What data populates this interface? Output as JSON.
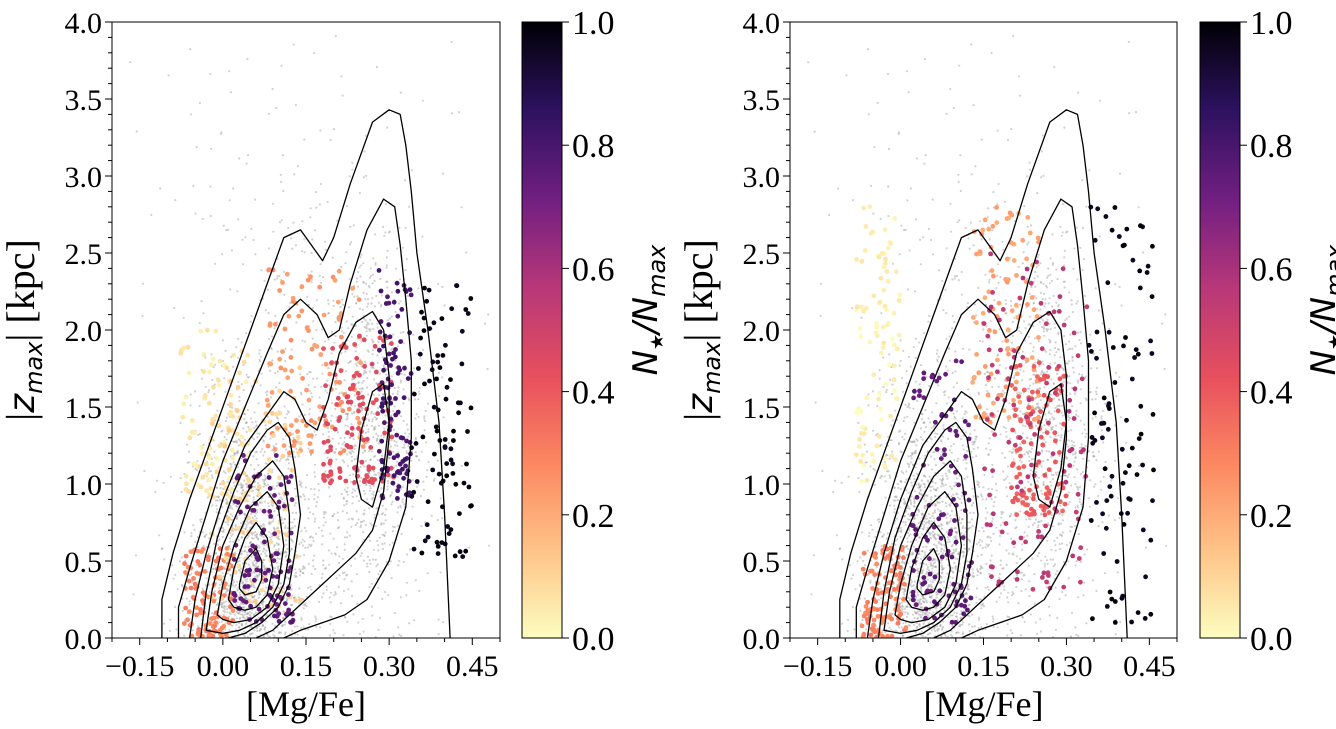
{
  "chart_data": [
    {
      "type": "scatter",
      "panel": "left",
      "xlabel": "[Mg/Fe]",
      "ylabel": "|z_max| [kpc]",
      "xlim": [
        -0.2,
        0.5
      ],
      "ylim": [
        0.0,
        4.0
      ],
      "xticks": [
        -0.15,
        0.0,
        0.15,
        0.3,
        0.45
      ],
      "xtick_labels": [
        "−0.15",
        "0.00",
        "0.15",
        "0.30",
        "0.45"
      ],
      "yticks": [
        0.0,
        0.5,
        1.0,
        1.5,
        2.0,
        2.5,
        3.0,
        3.5,
        4.0
      ],
      "ytick_labels": [
        "0.0",
        "0.5",
        "1.0",
        "1.5",
        "2.0",
        "2.5",
        "3.0",
        "3.5",
        "4.0"
      ],
      "grid": false,
      "background_points": "grey scatter of full sample, densest near [Mg/Fe]≈0.05, |z_max|≈0.4 and a second concentration near [Mg/Fe]≈0.28, |z_max|≈1.4",
      "contours": [
        {
          "level": 1,
          "x": [
            -0.11,
            -0.11,
            -0.09,
            -0.06,
            -0.02,
            0.02,
            0.06,
            0.09,
            0.11,
            0.14,
            0.16,
            0.18,
            0.2,
            0.23,
            0.27,
            0.3,
            0.32,
            0.33,
            0.34,
            0.35,
            0.37,
            0.39,
            0.4,
            0.41
          ],
          "y": [
            0.0,
            0.25,
            0.55,
            0.9,
            1.3,
            1.7,
            2.1,
            2.4,
            2.6,
            2.65,
            2.55,
            2.45,
            2.6,
            2.95,
            3.35,
            3.43,
            3.4,
            3.2,
            2.9,
            2.5,
            2.0,
            1.4,
            0.8,
            0.0
          ]
        },
        {
          "level": 2,
          "x": [
            -0.08,
            -0.08,
            -0.06,
            -0.03,
            0.0,
            0.04,
            0.08,
            0.11,
            0.14,
            0.17,
            0.19,
            0.21,
            0.23,
            0.26,
            0.29,
            0.31,
            0.32,
            0.33,
            0.34,
            0.34,
            0.33,
            0.3,
            0.26,
            0.22,
            0.18,
            0.14,
            0.11,
            0.09
          ],
          "y": [
            0.0,
            0.2,
            0.45,
            0.8,
            1.15,
            1.5,
            1.85,
            2.1,
            2.2,
            2.1,
            1.95,
            2.0,
            2.3,
            2.65,
            2.85,
            2.8,
            2.55,
            2.2,
            1.8,
            1.3,
            0.85,
            0.5,
            0.25,
            0.15,
            0.1,
            0.05,
            0.0,
            0.0
          ]
        },
        {
          "level": 3,
          "x": [
            -0.06,
            -0.05,
            -0.03,
            0.0,
            0.04,
            0.08,
            0.11,
            0.13,
            0.15,
            0.17,
            0.19,
            0.21,
            0.24,
            0.27,
            0.29,
            0.3,
            0.3,
            0.29,
            0.27,
            0.24,
            0.21,
            0.18,
            0.15,
            0.12,
            0.09,
            0.06
          ],
          "y": [
            0.0,
            0.25,
            0.55,
            0.9,
            1.25,
            1.45,
            1.6,
            1.55,
            1.4,
            1.35,
            1.55,
            1.85,
            2.05,
            2.12,
            2.0,
            1.7,
            1.3,
            0.95,
            0.7,
            0.55,
            0.45,
            0.35,
            0.25,
            0.15,
            0.05,
            0.0
          ]
        },
        {
          "level": 4,
          "x": [
            -0.04,
            -0.03,
            -0.01,
            0.02,
            0.05,
            0.08,
            0.1,
            0.12,
            0.13,
            0.14,
            0.13,
            0.12,
            0.1,
            0.07,
            0.04,
            0.01
          ],
          "y": [
            0.0,
            0.3,
            0.65,
            0.95,
            1.2,
            1.35,
            1.4,
            1.3,
            1.1,
            0.8,
            0.55,
            0.35,
            0.2,
            0.1,
            0.03,
            0.0
          ]
        },
        {
          "level": 5,
          "x": [
            -0.03,
            -0.02,
            0.0,
            0.03,
            0.06,
            0.09,
            0.11,
            0.12,
            0.12,
            0.11,
            0.09,
            0.06,
            0.03,
            0.0
          ],
          "y": [
            0.05,
            0.3,
            0.6,
            0.85,
            1.05,
            1.15,
            1.05,
            0.8,
            0.55,
            0.35,
            0.2,
            0.1,
            0.05,
            0.03
          ]
        },
        {
          "level": 6,
          "x": [
            -0.01,
            0.0,
            0.02,
            0.05,
            0.08,
            0.1,
            0.11,
            0.1,
            0.08,
            0.05,
            0.02,
            0.0
          ],
          "y": [
            0.15,
            0.35,
            0.6,
            0.85,
            0.95,
            0.85,
            0.6,
            0.35,
            0.2,
            0.12,
            0.1,
            0.12
          ]
        },
        {
          "level": 7,
          "x": [
            0.01,
            0.02,
            0.04,
            0.06,
            0.08,
            0.09,
            0.08,
            0.06,
            0.04,
            0.02
          ],
          "y": [
            0.25,
            0.45,
            0.65,
            0.75,
            0.65,
            0.45,
            0.28,
            0.2,
            0.18,
            0.2
          ]
        },
        {
          "level": 8,
          "x": [
            0.03,
            0.04,
            0.06,
            0.07,
            0.07,
            0.06,
            0.04,
            0.03
          ],
          "y": [
            0.35,
            0.5,
            0.58,
            0.5,
            0.38,
            0.3,
            0.28,
            0.32
          ]
        },
        {
          "level": 9,
          "x": [
            0.24,
            0.25,
            0.27,
            0.29,
            0.3,
            0.29,
            0.27,
            0.25
          ],
          "y": [
            1.05,
            1.35,
            1.6,
            1.65,
            1.4,
            1.1,
            0.85,
            0.9
          ]
        }
      ],
      "colored_groups": [
        {
          "n_frac": 0.05,
          "x_range": [
            -0.08,
            0.05
          ],
          "y_range": [
            0.9,
            2.0
          ]
        },
        {
          "n_frac": 0.25,
          "x_range": [
            0.08,
            0.26
          ],
          "y_range": [
            1.2,
            2.4
          ]
        },
        {
          "n_frac": 0.3,
          "x_range": [
            -0.07,
            0.02
          ],
          "y_range": [
            0.0,
            0.6
          ]
        },
        {
          "n_frac": 0.1,
          "x_range": [
            -0.02,
            0.14
          ],
          "y_range": [
            0.2,
            1.8
          ]
        },
        {
          "n_frac": 0.45,
          "x_range": [
            0.18,
            0.31
          ],
          "y_range": [
            1.0,
            2.0
          ]
        },
        {
          "n_frac": 0.75,
          "x_range": [
            0.02,
            0.13
          ],
          "y_range": [
            0.1,
            1.2
          ]
        },
        {
          "n_frac": 0.8,
          "x_range": [
            0.28,
            0.34
          ],
          "y_range": [
            0.9,
            2.4
          ]
        },
        {
          "n_frac": 0.97,
          "x_range": [
            0.34,
            0.45
          ],
          "y_range": [
            0.5,
            2.3
          ]
        }
      ],
      "colorbar": {
        "label": "N★/N_max",
        "ticks": [
          0.0,
          0.2,
          0.4,
          0.6,
          0.8,
          1.0
        ],
        "tick_labels": [
          "0.0",
          "0.2",
          "0.4",
          "0.6",
          "0.8",
          "1.0"
        ],
        "range": [
          0.0,
          1.0
        ],
        "colormap": "magma_r"
      }
    },
    {
      "type": "scatter",
      "panel": "right",
      "xlabel": "[Mg/Fe]",
      "ylabel": "|z_max| [kpc]",
      "xlim": [
        -0.2,
        0.5
      ],
      "ylim": [
        0.0,
        4.0
      ],
      "xticks": [
        -0.15,
        0.0,
        0.15,
        0.3,
        0.45
      ],
      "xtick_labels": [
        "−0.15",
        "0.00",
        "0.15",
        "0.30",
        "0.45"
      ],
      "yticks": [
        0.0,
        0.5,
        1.0,
        1.5,
        2.0,
        2.5,
        3.0,
        3.5,
        4.0
      ],
      "ytick_labels": [
        "0.0",
        "0.5",
        "1.0",
        "1.5",
        "2.0",
        "2.5",
        "3.0",
        "3.5",
        "4.0"
      ],
      "grid": false,
      "background_points": "same grey scatter of full sample as left panel",
      "contours": "same density contours as left panel",
      "colored_groups": [
        {
          "n_frac": 0.03,
          "x_range": [
            -0.08,
            0.0
          ],
          "y_range": [
            1.0,
            2.8
          ]
        },
        {
          "n_frac": 0.3,
          "x_range": [
            -0.07,
            0.01
          ],
          "y_range": [
            0.0,
            0.6
          ]
        },
        {
          "n_frac": 0.22,
          "x_range": [
            0.13,
            0.25
          ],
          "y_range": [
            1.4,
            2.8
          ]
        },
        {
          "n_frac": 0.4,
          "x_range": [
            0.2,
            0.3
          ],
          "y_range": [
            0.8,
            1.8
          ]
        },
        {
          "n_frac": 0.75,
          "x_range": [
            0.02,
            0.13
          ],
          "y_range": [
            0.1,
            1.8
          ]
        },
        {
          "n_frac": 0.55,
          "x_range": [
            0.15,
            0.34
          ],
          "y_range": [
            0.3,
            2.5
          ]
        },
        {
          "n_frac": 0.97,
          "x_range": [
            0.34,
            0.46
          ],
          "y_range": [
            0.1,
            2.8
          ]
        }
      ],
      "colorbar": {
        "label": "N★/N_max",
        "ticks": [
          0.0,
          0.2,
          0.4,
          0.6,
          0.8,
          1.0
        ],
        "tick_labels": [
          "0.0",
          "0.2",
          "0.4",
          "0.6",
          "0.8",
          "1.0"
        ],
        "range": [
          0.0,
          1.0
        ],
        "colormap": "magma_r"
      }
    }
  ],
  "colors": {
    "background_points": "#9a9a9a",
    "contour": "#000000",
    "colormap_stops": [
      "#fcfdbf",
      "#fec488",
      "#fc8961",
      "#e8515d",
      "#b73779",
      "#721f81",
      "#2c115f",
      "#000004"
    ]
  }
}
